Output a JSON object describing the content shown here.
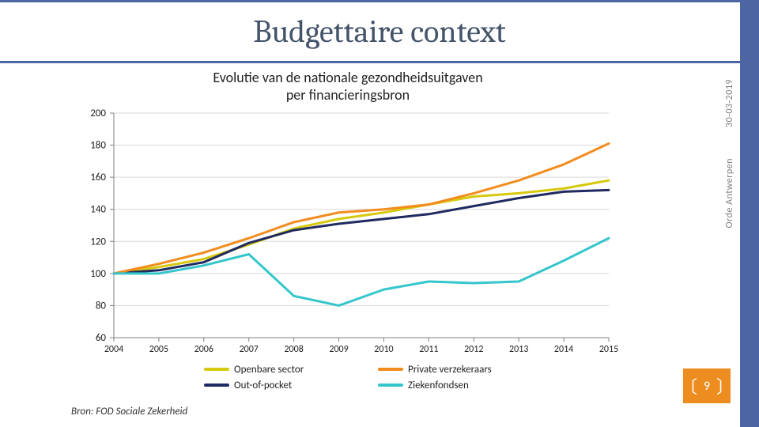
{
  "slide": {
    "title": "Budgettaire context",
    "title_color": "#44546a",
    "title_fontsize": 40,
    "band_border_color": "#4c66a4",
    "sidebar_color": "#4c66a4",
    "date": "30-03-2019",
    "org": "Orde Antwerpen",
    "page_number": "9",
    "pagenum_bg": "#ed8c1f"
  },
  "chart": {
    "type": "line",
    "title_line1": "Evolutie van de nationale gezondheidsuitgaven",
    "title_line2": "per financieringsbron",
    "title_fontsize": 18,
    "source": "Bron: FOD Sociale Zekerheid",
    "background_color": "#ffffff",
    "gridline_color": "#d9d9d9",
    "axis_color": "#c0c0c0",
    "label_fontsize": 13,
    "ylim": [
      60,
      200
    ],
    "ytick_step": 20,
    "x_categories": [
      "2004",
      "2005",
      "2006",
      "2007",
      "2008",
      "2009",
      "2010",
      "2011",
      "2012",
      "2013",
      "2014",
      "2015"
    ],
    "line_width": 3,
    "series": [
      {
        "name": "Openbare sector",
        "color": "#d6c90e",
        "values": [
          100,
          104,
          109,
          118,
          128,
          134,
          138,
          143,
          148,
          150,
          153,
          158
        ]
      },
      {
        "name": "Out-of-pocket",
        "color": "#1f2a60",
        "values": [
          100,
          102,
          107,
          119,
          127,
          131,
          134,
          137,
          142,
          147,
          151,
          152
        ]
      },
      {
        "name": "Private verzekeraars",
        "color": "#f28c1f",
        "values": [
          100,
          106,
          113,
          122,
          132,
          138,
          140,
          143,
          150,
          158,
          168,
          181
        ]
      },
      {
        "name": "Ziekenfondsen",
        "color": "#35c6cc",
        "values": [
          100,
          100,
          105,
          112,
          86,
          80,
          90,
          95,
          94,
          95,
          108,
          122
        ]
      }
    ],
    "legend_columns": 2
  }
}
